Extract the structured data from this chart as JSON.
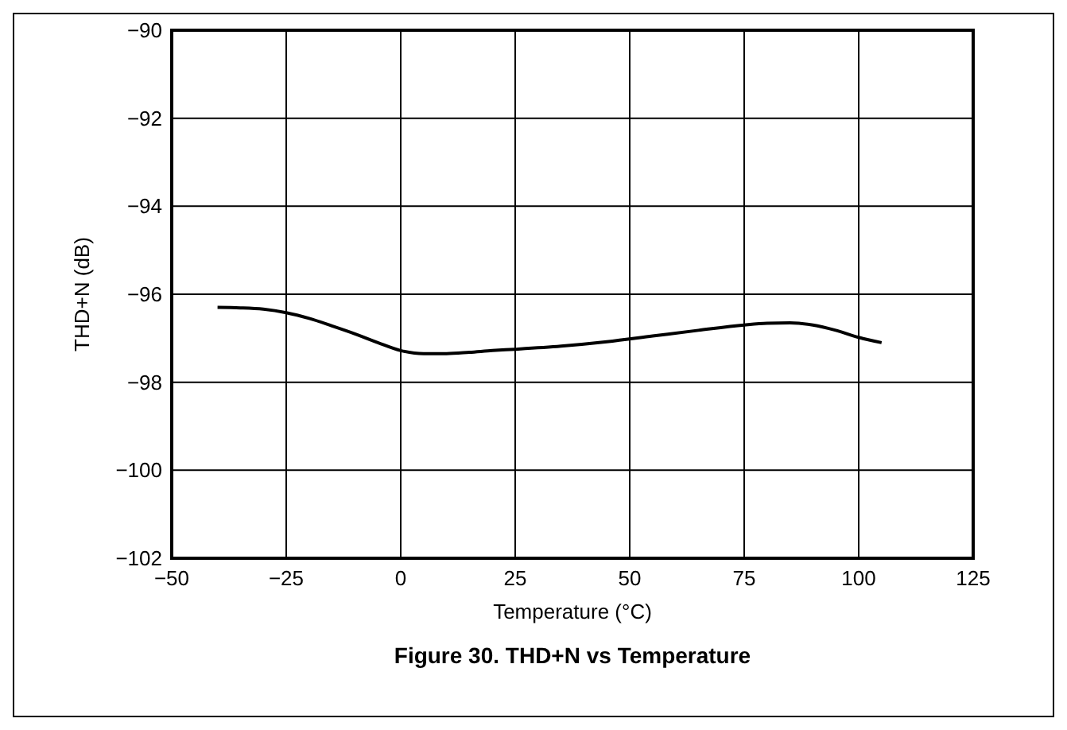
{
  "chart_data": {
    "type": "line",
    "title": "Figure 30.  THD+N vs Temperature",
    "xlabel": "Temperature (°C)",
    "ylabel": "THD+N (dB)",
    "x": [
      -40,
      -35,
      -30,
      -25,
      -20,
      -15,
      -10,
      -5,
      0,
      5,
      10,
      15,
      20,
      25,
      35,
      45,
      55,
      65,
      75,
      80,
      85,
      90,
      95,
      100,
      105
    ],
    "series": [
      {
        "color": "#000000",
        "values": [
          -96.3,
          -96.31,
          -96.34,
          -96.42,
          -96.55,
          -96.72,
          -96.9,
          -97.1,
          -97.28,
          -97.35,
          -97.35,
          -97.32,
          -97.28,
          -97.25,
          -97.18,
          -97.08,
          -96.95,
          -96.82,
          -96.7,
          -96.66,
          -96.65,
          -96.7,
          -96.82,
          -96.98,
          -97.1
        ]
      }
    ],
    "xlim": [
      -50,
      125
    ],
    "xticks": [
      {
        "value": -50,
        "label": "−50"
      },
      {
        "value": -25,
        "label": "−25"
      },
      0,
      25,
      50,
      75,
      100,
      125
    ],
    "ylim": [
      -102,
      -90
    ],
    "yticks": [
      {
        "value": -102,
        "label": "−102"
      },
      {
        "value": -100,
        "label": "−100"
      },
      {
        "value": -98,
        "label": "−98"
      },
      {
        "value": -96,
        "label": "−96"
      },
      {
        "value": -94,
        "label": "−94"
      },
      {
        "value": -92,
        "label": "−92"
      },
      {
        "value": -90,
        "label": "−90"
      }
    ],
    "grid": true,
    "marker": "none",
    "line_style": "solid"
  }
}
